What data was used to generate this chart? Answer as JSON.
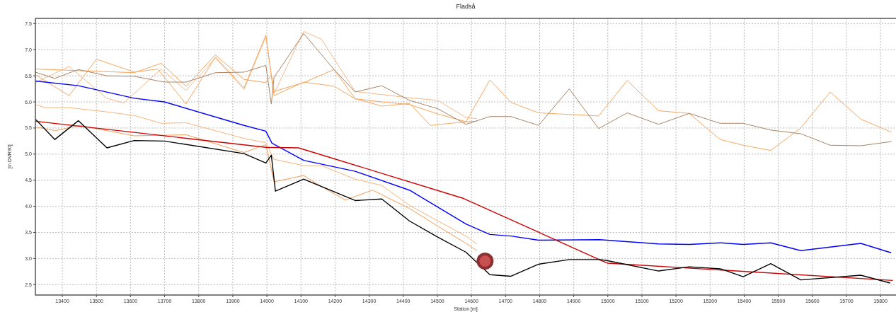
{
  "chart_data": {
    "type": "line",
    "title": "Fladså",
    "xlabel": "Station [m]",
    "ylabel": "[m DVR90]",
    "xlim": [
      13321,
      15837
    ],
    "ylim": [
      2.3,
      7.6
    ],
    "xticks": [
      13400,
      13500,
      13600,
      13700,
      13800,
      13900,
      14000,
      14100,
      14200,
      14300,
      14400,
      14500,
      14600,
      14700,
      14800,
      14900,
      15000,
      15100,
      15200,
      15300,
      15400,
      15500,
      15600,
      15700,
      15800
    ],
    "yticks": [
      2.5,
      {
        "value": 3,
        "label": "3.0"
      },
      3.5,
      {
        "value": 4,
        "label": "4.0"
      },
      4.5,
      {
        "value": 5,
        "label": "5.0"
      },
      5.5,
      {
        "value": 6,
        "label": "6.0"
      },
      6.5,
      {
        "value": 7,
        "label": "7.0"
      },
      7.5
    ],
    "grid": true,
    "marker": "none",
    "line_style": "solid",
    "series": [
      {
        "color": "#f7b98a",
        "x": [
          13321,
          13420,
          13530,
          13580,
          13690,
          13763,
          13849,
          13933,
          13997,
          14021,
          14108,
          14160,
          14259,
          14418,
          14501,
          14584,
          14616
        ],
        "values": [
          6.37,
          6.68,
          6.07,
          5.98,
          6.63,
          6.22,
          6.84,
          6.24,
          7.25,
          6.16,
          7.35,
          7.2,
          6.2,
          6.08,
          6.03,
          5.7,
          5.68
        ]
      },
      {
        "color": "#f5a25a",
        "x": [
          13321,
          13611,
          13690,
          13763,
          13849,
          13933,
          13997,
          14013,
          14021,
          14108,
          14197,
          14259,
          14337,
          14418,
          14501,
          14584,
          14616
        ],
        "values": [
          6.63,
          6.56,
          6.74,
          6.3,
          6.9,
          6.43,
          6.37,
          6.52,
          6.2,
          6.37,
          6.62,
          6.06,
          6.0,
          5.95,
          5.77,
          5.62,
          5.63
        ]
      },
      {
        "color": "#f7a860",
        "x": [
          13321,
          13420,
          13500,
          13611,
          13680,
          13763,
          13849,
          13933,
          13997,
          14021,
          14108,
          14197,
          14259,
          14337,
          14418,
          14480,
          14584,
          14654,
          14716,
          14797,
          14887,
          14973,
          15057,
          15149,
          15239,
          15329,
          15397,
          15478,
          15566,
          15652,
          15742,
          15832
        ],
        "values": [
          6.52,
          6.12,
          6.82,
          6.57,
          6.63,
          5.96,
          6.86,
          6.27,
          7.28,
          6.12,
          6.38,
          6.3,
          6.06,
          5.92,
          5.97,
          5.55,
          5.62,
          6.42,
          5.99,
          5.79,
          5.76,
          5.73,
          6.41,
          5.83,
          5.78,
          5.28,
          5.17,
          5.07,
          5.5,
          6.19,
          5.67,
          5.42
        ]
      },
      {
        "color": "#a88466",
        "x": [
          13321,
          13378,
          13447,
          13531,
          13611,
          13699,
          13763,
          13849,
          13933,
          13997,
          14013,
          14021,
          14108,
          14197,
          14259,
          14337,
          14418,
          14501,
          14584,
          14654,
          14716,
          14797,
          14887,
          14973,
          15057,
          15149,
          15239,
          15329,
          15397,
          15478,
          15566,
          15652,
          15742,
          15832
        ],
        "values": [
          6.57,
          6.45,
          6.62,
          6.5,
          6.49,
          6.38,
          6.38,
          6.56,
          6.57,
          6.7,
          5.96,
          6.47,
          7.31,
          6.62,
          6.19,
          6.31,
          6.03,
          5.87,
          5.57,
          5.72,
          5.72,
          5.55,
          6.25,
          5.49,
          5.79,
          5.57,
          5.78,
          5.59,
          5.59,
          5.46,
          5.39,
          5.17,
          5.16,
          5.24
        ]
      },
      {
        "color": "#f8b47a",
        "x": [
          13321,
          13350,
          13420,
          13530,
          13611,
          13690,
          13763,
          13933,
          13997,
          14021,
          14108,
          14160,
          14259,
          14337,
          14418,
          14501,
          14584,
          14616
        ],
        "values": [
          5.95,
          5.89,
          5.89,
          5.81,
          5.74,
          5.59,
          5.6,
          5.3,
          5.22,
          4.9,
          4.78,
          4.78,
          4.52,
          4.4,
          4.02,
          3.72,
          3.43,
          3.28
        ]
      },
      {
        "color": "#f59c55",
        "x": [
          13321,
          13380,
          13450,
          13611,
          13763,
          13933,
          13997,
          14021,
          14108,
          14160,
          14230,
          14310,
          14418,
          14501,
          14584,
          14616
        ],
        "values": [
          5.52,
          5.45,
          5.55,
          5.35,
          5.37,
          5.03,
          5.18,
          4.47,
          4.59,
          4.38,
          4.12,
          4.31,
          3.96,
          3.62,
          3.29,
          3.15
        ]
      },
      {
        "color": "#0000ff",
        "x": [
          13321,
          13447,
          13611,
          13699,
          13933,
          13997,
          14015,
          14108,
          14259,
          14418,
          14584,
          14654,
          14716,
          14797,
          14977,
          14997,
          15148,
          15239,
          15332,
          15397,
          15478,
          15566,
          15742,
          15831
        ],
        "values": [
          6.4,
          6.31,
          6.07,
          6.0,
          5.55,
          5.44,
          5.21,
          4.88,
          4.67,
          4.31,
          3.66,
          3.46,
          3.43,
          3.35,
          3.36,
          3.35,
          3.28,
          3.27,
          3.3,
          3.27,
          3.3,
          3.15,
          3.29,
          3.11
        ]
      },
      {
        "color": "#cc0000",
        "x": [
          13321,
          13997,
          14093,
          14577,
          14985,
          15000,
          15836
        ],
        "values": [
          5.63,
          5.13,
          5.12,
          4.15,
          2.95,
          2.91,
          2.58
        ]
      },
      {
        "color": "#000000",
        "x": [
          13321,
          13378,
          13447,
          13531,
          13611,
          13699,
          13933,
          13997,
          14013,
          14025,
          14108,
          14259,
          14337,
          14418,
          14501,
          14584,
          14615,
          14654,
          14716,
          14797,
          14887,
          14977,
          14997,
          15149,
          15239,
          15332,
          15397,
          15478,
          15566,
          15742,
          15828
        ],
        "values": [
          5.67,
          5.28,
          5.64,
          5.12,
          5.26,
          5.25,
          5.01,
          4.83,
          4.98,
          4.29,
          4.52,
          4.11,
          4.14,
          3.72,
          3.41,
          3.12,
          2.93,
          2.69,
          2.66,
          2.89,
          2.98,
          2.98,
          2.96,
          2.76,
          2.84,
          2.8,
          2.65,
          2.9,
          2.59,
          2.68,
          2.53
        ]
      }
    ]
  }
}
